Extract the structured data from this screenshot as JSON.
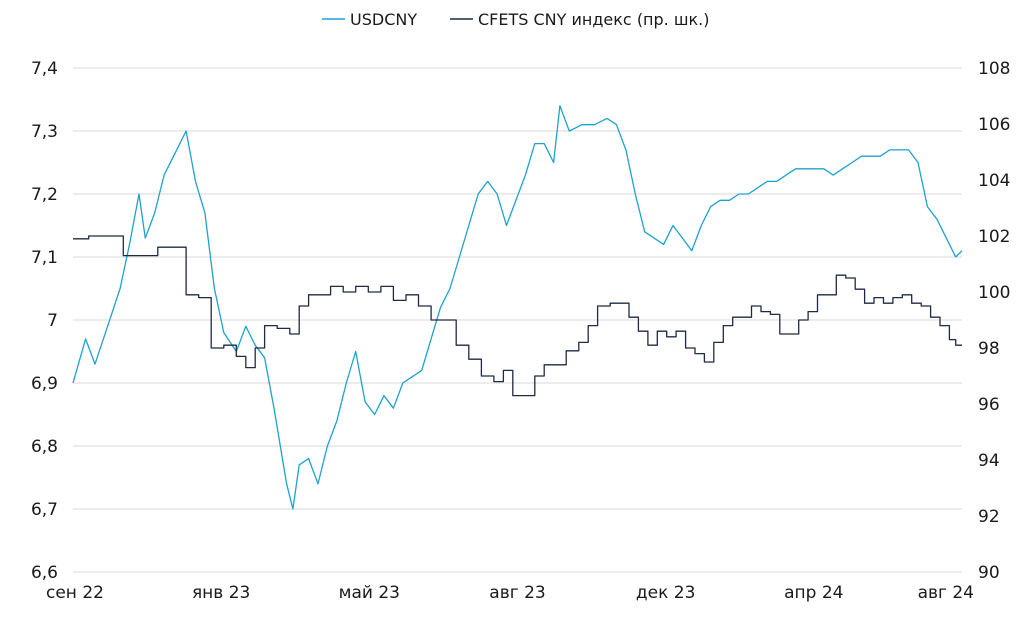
{
  "chart_data": {
    "type": "line",
    "title": "",
    "legend_position": "top-center",
    "grid": true,
    "x_ticks": [
      "сен 22",
      "янв 23",
      "май 23",
      "авг 23",
      "дек 23",
      "апр 24",
      "авг 24"
    ],
    "y_left": {
      "min": 6.6,
      "max": 7.4,
      "ticks": [
        "6,6",
        "6,7",
        "6,8",
        "6,9",
        "7",
        "7,1",
        "7,2",
        "7,3",
        "7,4"
      ]
    },
    "y_right": {
      "min": 90,
      "max": 108,
      "ticks": [
        "90",
        "92",
        "94",
        "96",
        "98",
        "100",
        "102",
        "104",
        "106",
        "108"
      ]
    },
    "series": [
      {
        "name": "USDCNY",
        "axis": "left",
        "color": "#1ea2cf",
        "values": [
          [
            0.0,
            6.9
          ],
          [
            0.4,
            6.97
          ],
          [
            0.7,
            6.93
          ],
          [
            1.1,
            6.99
          ],
          [
            1.5,
            7.05
          ],
          [
            1.8,
            7.12
          ],
          [
            2.1,
            7.2
          ],
          [
            2.3,
            7.13
          ],
          [
            2.6,
            7.17
          ],
          [
            2.9,
            7.23
          ],
          [
            3.3,
            7.27
          ],
          [
            3.6,
            7.3
          ],
          [
            3.9,
            7.22
          ],
          [
            4.2,
            7.17
          ],
          [
            4.5,
            7.05
          ],
          [
            4.8,
            6.98
          ],
          [
            5.2,
            6.95
          ],
          [
            5.5,
            6.99
          ],
          [
            5.8,
            6.96
          ],
          [
            6.1,
            6.94
          ],
          [
            6.4,
            6.86
          ],
          [
            6.6,
            6.8
          ],
          [
            6.8,
            6.74
          ],
          [
            7.0,
            6.7
          ],
          [
            7.2,
            6.77
          ],
          [
            7.5,
            6.78
          ],
          [
            7.8,
            6.74
          ],
          [
            8.1,
            6.8
          ],
          [
            8.4,
            6.84
          ],
          [
            8.7,
            6.9
          ],
          [
            9.0,
            6.95
          ],
          [
            9.3,
            6.87
          ],
          [
            9.6,
            6.85
          ],
          [
            9.9,
            6.88
          ],
          [
            10.2,
            6.86
          ],
          [
            10.5,
            6.9
          ],
          [
            10.8,
            6.91
          ],
          [
            11.1,
            6.92
          ],
          [
            11.4,
            6.97
          ],
          [
            11.7,
            7.02
          ],
          [
            12.0,
            7.05
          ],
          [
            12.3,
            7.1
          ],
          [
            12.6,
            7.15
          ],
          [
            12.9,
            7.2
          ],
          [
            13.2,
            7.22
          ],
          [
            13.5,
            7.2
          ],
          [
            13.8,
            7.15
          ],
          [
            14.1,
            7.19
          ],
          [
            14.4,
            7.23
          ],
          [
            14.7,
            7.28
          ],
          [
            15.0,
            7.28
          ],
          [
            15.3,
            7.25
          ],
          [
            15.5,
            7.34
          ],
          [
            15.8,
            7.3
          ],
          [
            16.2,
            7.31
          ],
          [
            16.6,
            7.31
          ],
          [
            17.0,
            7.32
          ],
          [
            17.3,
            7.31
          ],
          [
            17.6,
            7.27
          ],
          [
            17.9,
            7.2
          ],
          [
            18.2,
            7.14
          ],
          [
            18.5,
            7.13
          ],
          [
            18.8,
            7.12
          ],
          [
            19.1,
            7.15
          ],
          [
            19.4,
            7.13
          ],
          [
            19.7,
            7.11
          ],
          [
            20.0,
            7.15
          ],
          [
            20.3,
            7.18
          ],
          [
            20.6,
            7.19
          ],
          [
            20.9,
            7.19
          ],
          [
            21.2,
            7.2
          ],
          [
            21.5,
            7.2
          ],
          [
            21.8,
            7.21
          ],
          [
            22.1,
            7.22
          ],
          [
            22.4,
            7.22
          ],
          [
            22.7,
            7.23
          ],
          [
            23.0,
            7.24
          ],
          [
            23.3,
            7.24
          ],
          [
            23.6,
            7.24
          ],
          [
            23.9,
            7.24
          ],
          [
            24.2,
            7.23
          ],
          [
            24.5,
            7.24
          ],
          [
            24.8,
            7.25
          ],
          [
            25.1,
            7.26
          ],
          [
            25.4,
            7.26
          ],
          [
            25.7,
            7.26
          ],
          [
            26.0,
            7.27
          ],
          [
            26.3,
            7.27
          ],
          [
            26.6,
            7.27
          ],
          [
            26.9,
            7.25
          ],
          [
            27.2,
            7.18
          ],
          [
            27.5,
            7.16
          ],
          [
            27.8,
            7.13
          ],
          [
            28.1,
            7.1
          ],
          [
            28.3,
            7.11
          ]
        ]
      },
      {
        "name": "CFETS CNY индекс (пр. шк.)",
        "axis": "right",
        "color": "#1f2a44",
        "values": [
          [
            0.0,
            101.9
          ],
          [
            0.5,
            102.0
          ],
          [
            1.0,
            102.0
          ],
          [
            1.6,
            101.3
          ],
          [
            2.2,
            101.3
          ],
          [
            2.7,
            101.6
          ],
          [
            3.3,
            101.6
          ],
          [
            3.6,
            99.9
          ],
          [
            4.0,
            99.8
          ],
          [
            4.4,
            98.0
          ],
          [
            4.8,
            98.1
          ],
          [
            5.2,
            97.7
          ],
          [
            5.5,
            97.3
          ],
          [
            5.8,
            98.0
          ],
          [
            6.1,
            98.8
          ],
          [
            6.5,
            98.7
          ],
          [
            6.9,
            98.5
          ],
          [
            7.2,
            99.5
          ],
          [
            7.5,
            99.9
          ],
          [
            7.8,
            99.9
          ],
          [
            8.2,
            100.2
          ],
          [
            8.6,
            100.0
          ],
          [
            9.0,
            100.2
          ],
          [
            9.4,
            100.0
          ],
          [
            9.8,
            100.2
          ],
          [
            10.2,
            99.7
          ],
          [
            10.6,
            99.9
          ],
          [
            11.0,
            99.5
          ],
          [
            11.4,
            99.0
          ],
          [
            11.8,
            99.0
          ],
          [
            12.2,
            98.1
          ],
          [
            12.6,
            97.6
          ],
          [
            13.0,
            97.0
          ],
          [
            13.4,
            96.8
          ],
          [
            13.7,
            97.2
          ],
          [
            14.0,
            96.3
          ],
          [
            14.4,
            96.3
          ],
          [
            14.7,
            97.0
          ],
          [
            15.0,
            97.4
          ],
          [
            15.3,
            97.4
          ],
          [
            15.7,
            97.9
          ],
          [
            16.1,
            98.2
          ],
          [
            16.4,
            98.8
          ],
          [
            16.7,
            99.5
          ],
          [
            17.1,
            99.6
          ],
          [
            17.4,
            99.6
          ],
          [
            17.7,
            99.1
          ],
          [
            18.0,
            98.6
          ],
          [
            18.3,
            98.1
          ],
          [
            18.6,
            98.6
          ],
          [
            18.9,
            98.4
          ],
          [
            19.2,
            98.6
          ],
          [
            19.5,
            98.0
          ],
          [
            19.8,
            97.8
          ],
          [
            20.1,
            97.5
          ],
          [
            20.4,
            98.2
          ],
          [
            20.7,
            98.8
          ],
          [
            21.0,
            99.1
          ],
          [
            21.3,
            99.1
          ],
          [
            21.6,
            99.5
          ],
          [
            21.9,
            99.3
          ],
          [
            22.2,
            99.2
          ],
          [
            22.5,
            98.5
          ],
          [
            22.8,
            98.5
          ],
          [
            23.1,
            99.0
          ],
          [
            23.4,
            99.3
          ],
          [
            23.7,
            99.9
          ],
          [
            24.0,
            99.9
          ],
          [
            24.3,
            100.6
          ],
          [
            24.6,
            100.5
          ],
          [
            24.9,
            100.1
          ],
          [
            25.2,
            99.6
          ],
          [
            25.5,
            99.8
          ],
          [
            25.8,
            99.6
          ],
          [
            26.1,
            99.8
          ],
          [
            26.4,
            99.9
          ],
          [
            26.7,
            99.6
          ],
          [
            27.0,
            99.5
          ],
          [
            27.3,
            99.1
          ],
          [
            27.6,
            98.8
          ],
          [
            27.9,
            98.3
          ],
          [
            28.1,
            98.1
          ],
          [
            28.3,
            98.1
          ]
        ]
      }
    ]
  }
}
